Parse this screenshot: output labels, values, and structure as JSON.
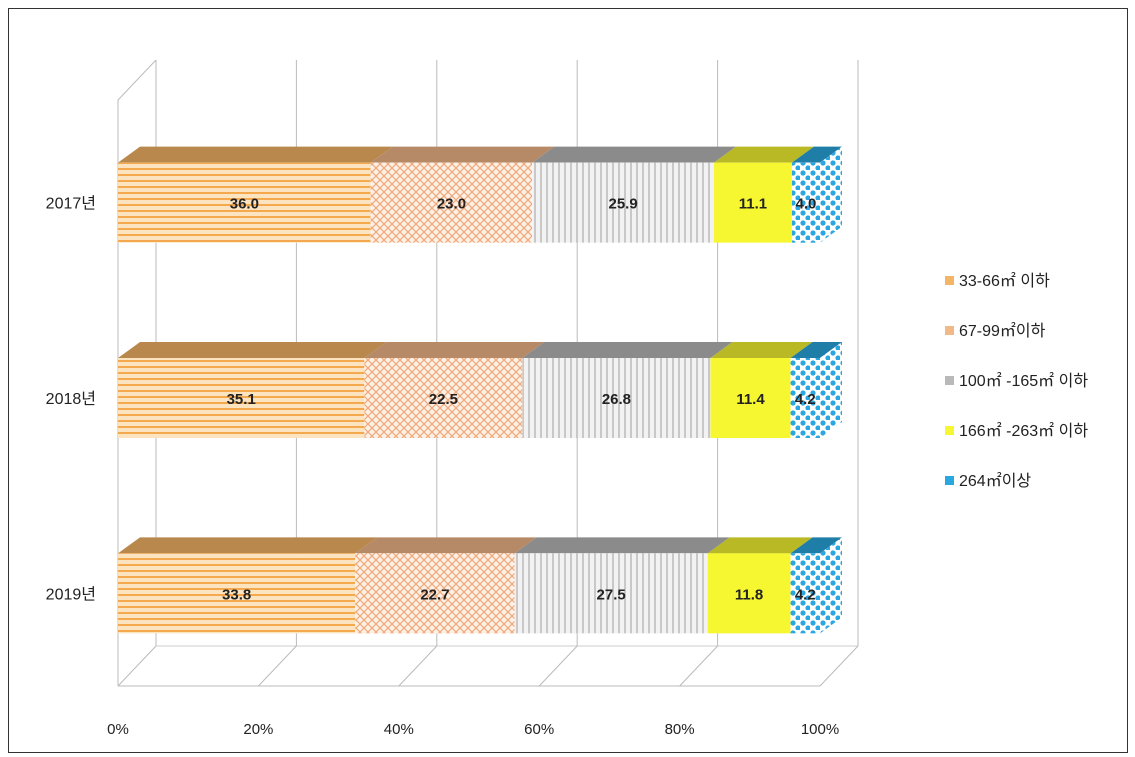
{
  "chart_data": {
    "type": "bar",
    "orientation": "horizontal",
    "stacked": "percent",
    "three_d": true,
    "title": "",
    "xlabel": "",
    "ylabel": "",
    "xlim": [
      0,
      100
    ],
    "x_ticks": [
      "0%",
      "20%",
      "40%",
      "60%",
      "80%",
      "100%"
    ],
    "categories": [
      "2017년",
      "2018년",
      "2019년"
    ],
    "series": [
      {
        "name": "33-66㎡ 이하",
        "color": "#f5b567",
        "pattern": "horizontal-lines",
        "values": [
          36.0,
          35.1,
          33.8
        ]
      },
      {
        "name": "67-99㎡이하",
        "color": "#f2b888",
        "pattern": "diagonal-cross",
        "values": [
          23.0,
          22.5,
          22.7
        ]
      },
      {
        "name": "100㎡ -165㎡ 이하",
        "color": "#b9b9b9",
        "pattern": "vertical-lines",
        "values": [
          25.9,
          26.8,
          27.5
        ]
      },
      {
        "name": "166㎡ -263㎡ 이하",
        "color": "#f7f731",
        "pattern": "solid",
        "values": [
          11.1,
          11.4,
          11.8
        ]
      },
      {
        "name": "264㎡이상",
        "color": "#29a8e0",
        "pattern": "dots",
        "values": [
          4.0,
          4.2,
          4.2
        ]
      }
    ],
    "data_labels": [
      [
        "36.0",
        "23.0",
        "25.9",
        "11.1",
        "4.0"
      ],
      [
        "35.1",
        "22.5",
        "26.8",
        "11.4",
        "4.2"
      ],
      [
        "33.8",
        "22.7",
        "27.5",
        "11.8",
        "4.2"
      ]
    ],
    "grid": true,
    "legend_position": "right"
  }
}
